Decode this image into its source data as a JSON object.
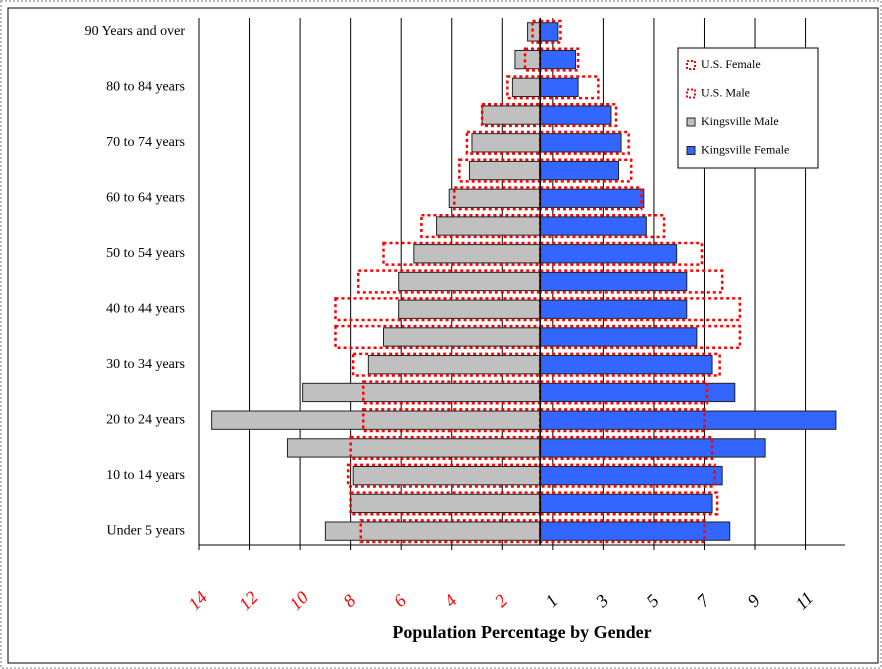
{
  "chart_data": {
    "type": "pyramid",
    "title": "Population Percentage by Gender",
    "categories": [
      "90 Years and over",
      null,
      "80 to 84 years",
      null,
      "70 to 74 years",
      null,
      "60 to 64 years",
      null,
      "50 to 54 years",
      null,
      "40 to 44 years",
      null,
      "30 to 34 years",
      null,
      "20 to 24 years",
      null,
      "10 to 14 years",
      null,
      "Under 5 years"
    ],
    "series": [
      {
        "name": "Kingsville Male",
        "color": "#c0c0c0",
        "side": "left",
        "style": "solid",
        "values": [
          0.5,
          1.0,
          1.1,
          2.3,
          2.7,
          2.8,
          3.6,
          4.1,
          5.0,
          5.6,
          5.6,
          6.2,
          6.8,
          9.4,
          13.0,
          10.0,
          7.4,
          7.5,
          8.5
        ]
      },
      {
        "name": "Kingsville Female",
        "color": "#3366ff",
        "side": "right",
        "style": "solid",
        "values": [
          0.7,
          1.4,
          1.5,
          2.8,
          3.2,
          3.1,
          4.1,
          4.2,
          5.4,
          5.8,
          5.8,
          6.2,
          6.8,
          7.7,
          11.7,
          8.9,
          7.2,
          6.8,
          7.5
        ]
      },
      {
        "name": "U.S. Female",
        "color": "#ff0000",
        "side": "right",
        "style": "dotted",
        "values": [
          0.8,
          1.5,
          2.3,
          3.0,
          3.5,
          3.6,
          4.0,
          4.9,
          6.4,
          7.2,
          7.9,
          7.9,
          7.1,
          6.6,
          6.5,
          6.8,
          6.9,
          7.0,
          6.5
        ]
      },
      {
        "name": "U.S. Male",
        "color": "#ff0000",
        "side": "left",
        "style": "dotted",
        "values": [
          0.3,
          0.6,
          1.3,
          2.3,
          2.9,
          3.2,
          3.4,
          4.7,
          6.2,
          7.2,
          8.1,
          8.1,
          7.4,
          7.0,
          7.0,
          7.5,
          7.6,
          7.5,
          7.1
        ]
      }
    ],
    "legend_order": [
      2,
      3,
      0,
      1
    ],
    "xlim": [
      -13.5,
      12.06
    ],
    "xticks": [
      {
        "value": -13.5,
        "label": "14"
      },
      {
        "value": -11.5,
        "label": "12"
      },
      {
        "value": -9.5,
        "label": "10"
      },
      {
        "value": -7.5,
        "label": "8"
      },
      {
        "value": -5.5,
        "label": "6"
      },
      {
        "value": -3.5,
        "label": "4"
      },
      {
        "value": -1.5,
        "label": "2"
      },
      {
        "value": 0.5,
        "label": "1"
      },
      {
        "value": 2.5,
        "label": "3"
      },
      {
        "value": 4.5,
        "label": "5"
      },
      {
        "value": 6.5,
        "label": "7"
      },
      {
        "value": 8.5,
        "label": "9"
      },
      {
        "value": 10.5,
        "label": "11"
      }
    ],
    "grid": true
  }
}
